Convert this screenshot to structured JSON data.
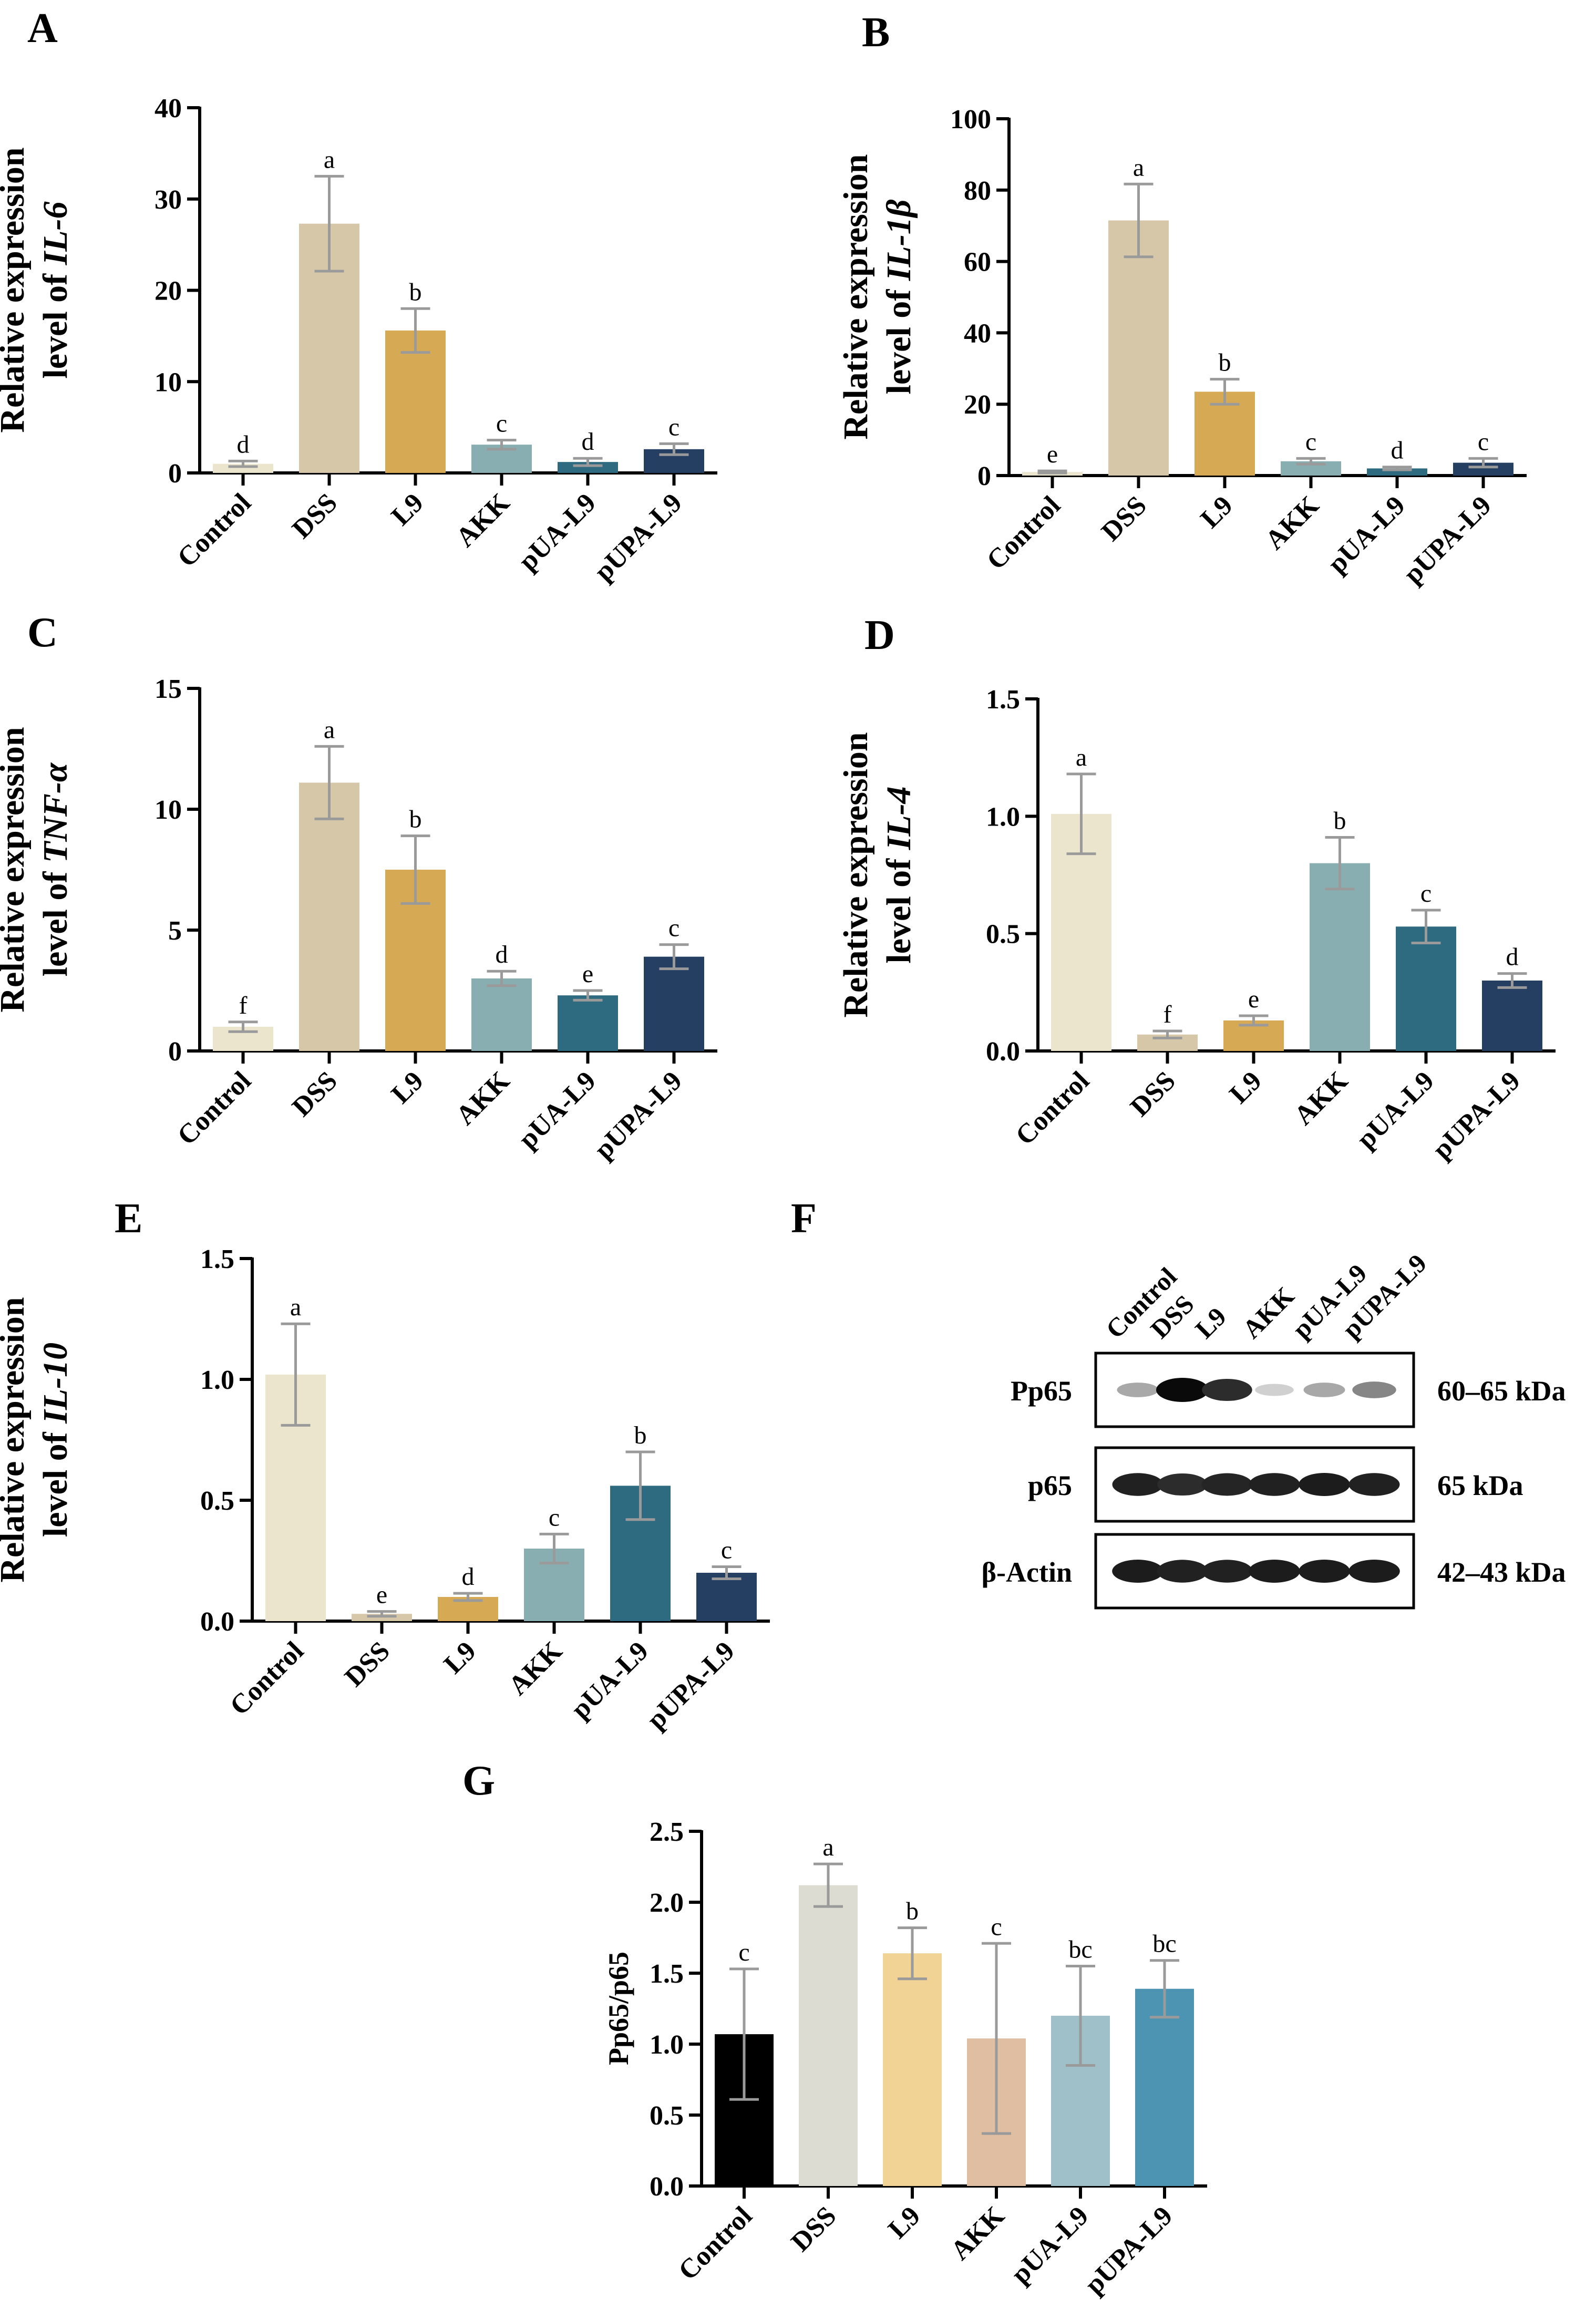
{
  "chart_data": [
    {
      "panel": "A",
      "type": "bar",
      "ylabel_line1": "Relative expression",
      "ylabel_line2_prefix": "level of ",
      "ylabel_gene": "IL-6",
      "categories": [
        "Control",
        "DSS",
        "L9",
        "AKK",
        "pUA-L9",
        "pUPA-L9"
      ],
      "values": [
        1.0,
        27.3,
        15.6,
        3.1,
        1.2,
        2.6
      ],
      "errors": [
        0.3,
        5.2,
        2.4,
        0.5,
        0.4,
        0.6
      ],
      "letters": [
        "d",
        "a",
        "b",
        "c",
        "d",
        "c"
      ],
      "colors": [
        "#ece5cd",
        "#d6c7a8",
        "#d6aa55",
        "#89aeb1",
        "#2f6b80",
        "#253f63"
      ],
      "ylim": [
        0,
        40
      ],
      "yticks": [
        "0",
        "10",
        "20",
        "30",
        "40"
      ]
    },
    {
      "panel": "B",
      "type": "bar",
      "ylabel_line1": "Relative expression",
      "ylabel_line2_prefix": "level of ",
      "ylabel_gene": "IL-1β",
      "categories": [
        "Control",
        "DSS",
        "L9",
        "AKK",
        "pUA-L9",
        "pUPA-L9"
      ],
      "values": [
        1.0,
        71.5,
        23.5,
        4.0,
        2.0,
        3.6
      ],
      "errors": [
        0.3,
        10.2,
        3.5,
        0.8,
        0.4,
        1.2
      ],
      "letters": [
        "e",
        "a",
        "b",
        "c",
        "d",
        "c"
      ],
      "colors": [
        "#ece5cd",
        "#d6c7a8",
        "#d6aa55",
        "#89aeb1",
        "#2f6b80",
        "#253f63"
      ],
      "ylim": [
        0,
        100
      ],
      "yticks": [
        "0",
        "20",
        "40",
        "60",
        "80",
        "100"
      ]
    },
    {
      "panel": "C",
      "type": "bar",
      "ylabel_line1": "Relative expression",
      "ylabel_line2_prefix": "level of ",
      "ylabel_gene": "TNF-α",
      "categories": [
        "Control",
        "DSS",
        "L9",
        "AKK",
        "pUA-L9",
        "pUPA-L9"
      ],
      "values": [
        1.0,
        11.1,
        7.5,
        3.0,
        2.3,
        3.9
      ],
      "errors": [
        0.2,
        1.5,
        1.4,
        0.3,
        0.2,
        0.5
      ],
      "letters": [
        "f",
        "a",
        "b",
        "d",
        "e",
        "c"
      ],
      "colors": [
        "#ece5cd",
        "#d6c7a8",
        "#d6aa55",
        "#89aeb1",
        "#2f6b80",
        "#253f63"
      ],
      "ylim": [
        0,
        15
      ],
      "yticks": [
        "0",
        "5",
        "10",
        "15"
      ]
    },
    {
      "panel": "D",
      "type": "bar",
      "ylabel_line1": "Relative expression",
      "ylabel_line2_prefix": "level of ",
      "ylabel_gene": "IL-4",
      "categories": [
        "Control",
        "DSS",
        "L9",
        "AKK",
        "pUA-L9",
        "pUPA-L9"
      ],
      "values": [
        1.01,
        0.07,
        0.13,
        0.8,
        0.53,
        0.3
      ],
      "errors": [
        0.17,
        0.015,
        0.02,
        0.11,
        0.07,
        0.03
      ],
      "letters": [
        "a",
        "f",
        "e",
        "b",
        "c",
        "d"
      ],
      "colors": [
        "#ece5cd",
        "#d6c7a8",
        "#d6aa55",
        "#89aeb1",
        "#2f6b80",
        "#253f63"
      ],
      "ylim": [
        0,
        1.5
      ],
      "yticks": [
        "0.0",
        "0.5",
        "1.0",
        "1.5"
      ]
    },
    {
      "panel": "E",
      "type": "bar",
      "ylabel_line1": "Relative expression",
      "ylabel_line2_prefix": "level of ",
      "ylabel_gene": "IL-10",
      "categories": [
        "Control",
        "DSS",
        "L9",
        "AKK",
        "pUA-L9",
        "pUPA-L9"
      ],
      "values": [
        1.02,
        0.03,
        0.1,
        0.3,
        0.56,
        0.2
      ],
      "errors": [
        0.21,
        0.01,
        0.015,
        0.06,
        0.14,
        0.025
      ],
      "letters": [
        "a",
        "e",
        "d",
        "c",
        "b",
        "c"
      ],
      "colors": [
        "#ece5cd",
        "#d6c7a8",
        "#d6aa55",
        "#89aeb1",
        "#2f6b80",
        "#253f63"
      ],
      "ylim": [
        0,
        1.5
      ],
      "yticks": [
        "0.0",
        "0.5",
        "1.0",
        "1.5"
      ]
    },
    {
      "panel": "G",
      "type": "bar",
      "ylabel_line1": "Pp65/p65",
      "ylabel_line2_prefix": "",
      "ylabel_gene": "",
      "categories": [
        "Control",
        "DSS",
        "L9",
        "AKK",
        "pUA-L9",
        "pUPA-L9"
      ],
      "values": [
        1.07,
        2.12,
        1.64,
        1.04,
        1.2,
        1.39
      ],
      "errors": [
        0.46,
        0.15,
        0.18,
        0.67,
        0.35,
        0.2
      ],
      "letters": [
        "c",
        "a",
        "b",
        "c",
        "bc",
        "bc"
      ],
      "colors": [
        "#000000",
        "#dcdcd2",
        "#f1d396",
        "#dfbea2",
        "#9fc0c8",
        "#4d94b2"
      ],
      "ylim": [
        0,
        2.5
      ],
      "yticks": [
        "0.0",
        "0.5",
        "1.0",
        "1.5",
        "2.0",
        "2.5"
      ]
    }
  ],
  "panel_F": {
    "letter": "F",
    "lanes": [
      "Control",
      "DSS",
      "L9",
      "AKK",
      "pUA-L9",
      "pUPA-L9"
    ],
    "blots": [
      {
        "protein": "Pp65",
        "size": "60–65 kDa",
        "band_intensity": [
          0.3,
          1.0,
          0.85,
          0.12,
          0.3,
          0.45
        ]
      },
      {
        "protein": "p65",
        "size": "65 kDa",
        "band_intensity": [
          0.9,
          0.85,
          0.88,
          0.9,
          0.92,
          0.9
        ]
      },
      {
        "protein": "β-Actin",
        "size": "42–43 kDa",
        "band_intensity": [
          0.92,
          0.9,
          0.9,
          0.92,
          0.92,
          0.92
        ]
      }
    ]
  }
}
